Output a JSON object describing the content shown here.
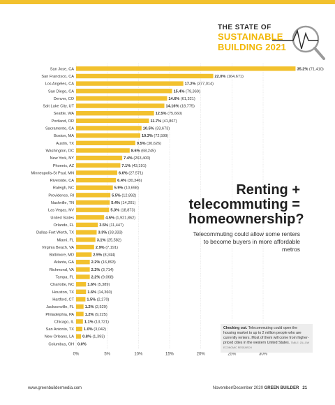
{
  "header": {
    "logo_line1": "THE STATE OF",
    "logo_line2": "SUSTAINABLE",
    "logo_line3": "BUILDING 2021",
    "accent_color": "#f2c12e"
  },
  "headline": {
    "line1": "Renting +",
    "line2": "telecommuting =",
    "line3": "homeownership?"
  },
  "subhead": "Telecommuting could allow some renters to become buyers in more affordable metros",
  "callout": {
    "lead": "Checking out.",
    "body": " Telecommuting could open the housing market to up to 2 million people who are currently renters. Most of them will come from higher-priced cities in the western United States.",
    "source": "TABLE: ZILLOW ECONOMIC RESEARCH"
  },
  "footer": {
    "website": "www.greenbuildermedia.com",
    "issue": "November/December 2020",
    "brand": "GREEN BUILDER",
    "page": "21"
  },
  "chart_data": {
    "type": "bar",
    "orientation": "horizontal",
    "bar_color": "#f2c12e",
    "xlim": [
      0,
      35
    ],
    "xticks": [
      "0%",
      "5%",
      "10%",
      "15%",
      "20%",
      "25%",
      "30%"
    ],
    "categories": [
      "San Jose, CA",
      "San Francisco, CA",
      "Los Angeles, CA",
      "San Diego, CA",
      "Denver, CO",
      "Salt Lake City, UT",
      "Seattle, WA",
      "Portland, OR",
      "Sacramento, CA",
      "Boston, MA",
      "Austin, TX",
      "Washington, DC",
      "New York, NY",
      "Phoenix, AZ",
      "Minneapolis-St Paul, MN",
      "Riverside, CA",
      "Raleigh, NC",
      "Providence, RI",
      "Nashville, TN",
      "Las Vegas, NV",
      "United States",
      "Orlando, FL",
      "Dallas-Fort Worth, TX",
      "Miami, FL",
      "Virginia Beach, VA",
      "Baltimore, MD",
      "Atlanta, GA",
      "Richmond, VA",
      "Tampa, FL",
      "Charlotte, NC",
      "Houston, TX",
      "Hartford, CT",
      "Jacksonville, FL",
      "Philadelphia, PA",
      "Chicago, IL",
      "San Antonio, TX",
      "New Orleans, LA",
      "Columbus, OH"
    ],
    "values": [
      35.2,
      22.0,
      17.2,
      15.4,
      14.6,
      14.16,
      12.5,
      11.7,
      10.5,
      10.3,
      9.5,
      8.6,
      7.4,
      7.1,
      6.6,
      6.4,
      5.9,
      5.5,
      5.4,
      5.3,
      4.5,
      3.5,
      3.3,
      3.1,
      2.9,
      2.5,
      2.2,
      2.2,
      2.2,
      1.6,
      1.6,
      1.5,
      1.2,
      1.2,
      1.1,
      1.0,
      0.8,
      0.0
    ],
    "pct_labels": [
      "35.2%",
      "22.0%",
      "17.2%",
      "15.4%",
      "14.6%",
      "14.16%",
      "12.5%",
      "11.7%",
      "10.5%",
      "10.3%",
      "9.5%",
      "8.6%",
      "7.4%",
      "7.1%",
      "6.6%",
      "6.4%",
      "5.9%",
      "5.5%",
      "5.4%",
      "5.3%",
      "4.5%",
      "3.5%",
      "3.3%",
      "3.1%",
      "2.9%",
      "2.5%",
      "2.2%",
      "2.2%",
      "2.2%",
      "1.6%",
      "1.6%",
      "1.5%",
      "1.2%",
      "1.2%",
      "1.1%",
      "1.0%",
      "0.8%",
      "0.0%"
    ],
    "counts": [
      "(71,410)",
      "(164,671)",
      "(377,014)",
      "(79,369)",
      "(61,321)",
      "(18,775)",
      "(75,660)",
      "(41,867)",
      "(33,673)",
      "(72,599)",
      "(30,626)",
      "(68,245)",
      "(263,400)",
      "(43,191)",
      "(27,571)",
      "(30,346)",
      "(10,698)",
      "(12,892)",
      "(14,201)",
      "(18,873)",
      "(1,921,862)",
      "(11,447)",
      "(33,333)",
      "(25,582)",
      "(7,191)",
      "(8,344)",
      "(16,893)",
      "(3,714)",
      "(9,068)",
      "(5,389)",
      "(14,360)",
      "(2,270)",
      "(2,529)",
      "(9,225)",
      "(13,721)",
      "(3,042)",
      "(1,393)",
      ""
    ]
  }
}
